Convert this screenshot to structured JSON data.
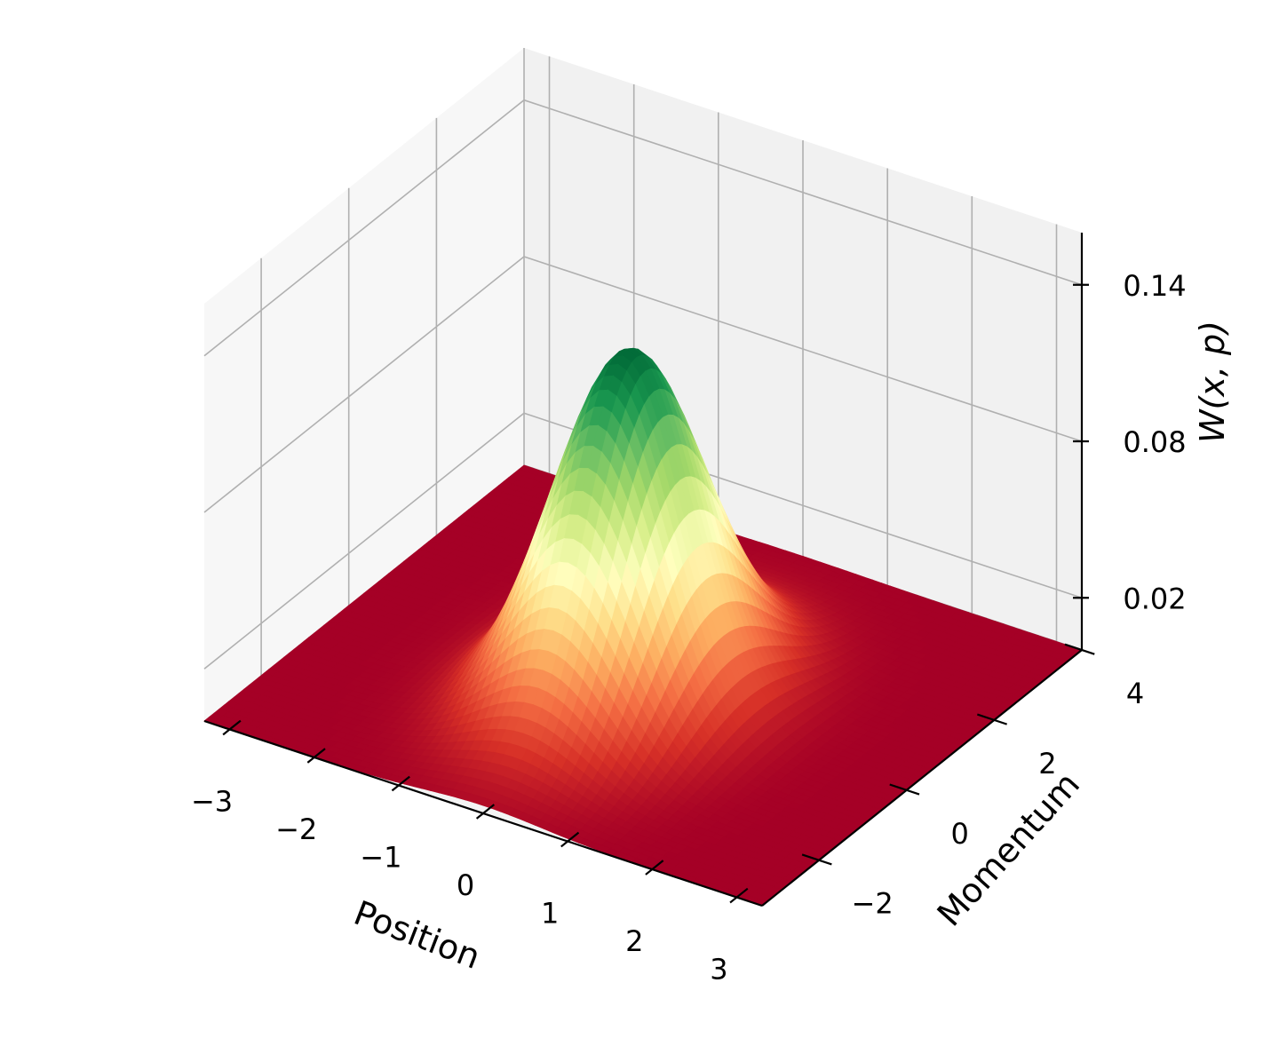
{
  "chart_data": {
    "type": "surface3d",
    "function": "gaussian",
    "peak_value": 0.133,
    "center": [
      0,
      0
    ],
    "sigma_x": 0.7,
    "sigma_p": 1.2,
    "x_range": [
      -3.3,
      3.3
    ],
    "y_range": [
      -3.3,
      4.0
    ],
    "z_range": [
      0.0,
      0.16
    ],
    "colormap": "RdYlGn",
    "xlabel": "Position",
    "ylabel": "Momentum",
    "zlabel": "W(x, p)",
    "x_ticks": [
      {
        "value": -3,
        "label": "−3"
      },
      {
        "value": -2,
        "label": "−2"
      },
      {
        "value": -1,
        "label": "−1"
      },
      {
        "value": 0,
        "label": "0"
      },
      {
        "value": 1,
        "label": "1"
      },
      {
        "value": 2,
        "label": "2"
      },
      {
        "value": 3,
        "label": "3"
      }
    ],
    "y_ticks": [
      {
        "value": -2,
        "label": "−2"
      },
      {
        "value": 0,
        "label": "0"
      },
      {
        "value": 2,
        "label": "2"
      },
      {
        "value": 4,
        "label": "4"
      }
    ],
    "z_ticks": [
      {
        "value": 0.02,
        "label": "0.02"
      },
      {
        "value": 0.08,
        "label": "0.08"
      },
      {
        "value": 0.14,
        "label": "0.14"
      }
    ],
    "grid": true
  }
}
